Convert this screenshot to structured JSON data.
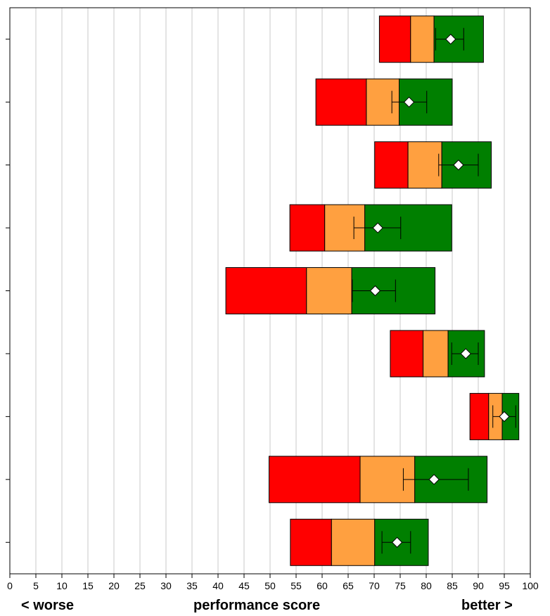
{
  "chart_data": {
    "type": "bar",
    "orientation": "horizontal",
    "xlim": [
      0,
      100
    ],
    "x_ticks": [
      "0",
      "5",
      "10",
      "15",
      "20",
      "25",
      "30",
      "35",
      "40",
      "45",
      "50",
      "55",
      "60",
      "65",
      "70",
      "75",
      "80",
      "85",
      "90",
      "95",
      "100"
    ],
    "grid": "vertical",
    "bands": {
      "colors": {
        "low": "#ff0000",
        "mid": "#ffa040",
        "high": "#007f00"
      },
      "rows": [
        {
          "min": 71,
          "q1": 77,
          "q2": 81.5,
          "max": 91.0,
          "mean": 84.7,
          "err_low": 81.8,
          "err_high": 87.2
        },
        {
          "min": 58.8,
          "q1": 68.5,
          "q2": 74.8,
          "max": 85,
          "mean": 76.7,
          "err_low": 73.4,
          "err_high": 80.1
        },
        {
          "min": 70.1,
          "q1": 76.5,
          "q2": 83.0,
          "max": 92.5,
          "mean": 86.2,
          "err_low": 82.4,
          "err_high": 90.0
        },
        {
          "min": 53.8,
          "q1": 60.5,
          "q2": 68.2,
          "max": 84.9,
          "mean": 70.7,
          "err_low": 66.1,
          "err_high": 75.1
        },
        {
          "min": 41.5,
          "q1": 57.0,
          "q2": 65.7,
          "max": 81.7,
          "mean": 70.2,
          "err_low": 65.8,
          "err_high": 74.1
        },
        {
          "min": 73.1,
          "q1": 79.4,
          "q2": 84.2,
          "max": 91.2,
          "mean": 87.6,
          "err_low": 84.9,
          "err_high": 90.0
        },
        {
          "min": 88.4,
          "q1": 92.0,
          "q2": 94.6,
          "max": 97.8,
          "mean": 95.0,
          "err_low": 92.8,
          "err_high": 97.2
        },
        {
          "min": 49.8,
          "q1": 67.3,
          "q2": 77.8,
          "max": 91.7,
          "mean": 81.5,
          "err_low": 75.6,
          "err_high": 88.1
        },
        {
          "min": 53.9,
          "q1": 61.8,
          "q2": 70.1,
          "max": 80.4,
          "mean": 74.4,
          "err_low": 71.5,
          "err_high": 77.0
        }
      ]
    }
  },
  "labels": {
    "left": "< worse",
    "center": "performance score",
    "right": "better >"
  }
}
